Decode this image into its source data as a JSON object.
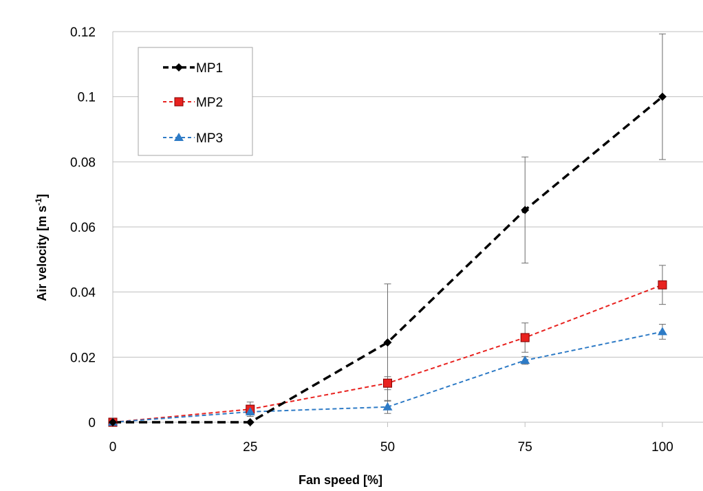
{
  "chart_data": {
    "type": "line",
    "title": "",
    "xlabel": "Fan speed [%]",
    "ylabel": "Air velocity [m s-1]",
    "ylabel_main": "Air velocity [m s",
    "ylabel_sup": "-1",
    "ylabel_tail": "]",
    "x": [
      0,
      25,
      50,
      75,
      100
    ],
    "xticks": [
      "0",
      "25",
      "50",
      "75",
      "100"
    ],
    "xlim": [
      0,
      100
    ],
    "ylim": [
      0,
      0.12
    ],
    "yticks": [
      "0",
      "0.02",
      "0.04",
      "0.06",
      "0.08",
      "0.1",
      "0.12"
    ],
    "grid": "horizontal",
    "legend_position": "top-left",
    "series": [
      {
        "name": "MP1",
        "color": "#000000",
        "marker": "diamond",
        "line": "dashed-bold",
        "values": [
          0,
          0,
          0.0245,
          0.0652,
          0.1
        ],
        "errors": [
          0,
          0,
          0.018,
          0.0163,
          0.0193
        ]
      },
      {
        "name": "MP2",
        "color": "#e8221f",
        "marker": "square",
        "line": "dashed",
        "values": [
          0,
          0.004,
          0.012,
          0.026,
          0.0422
        ],
        "errors": [
          0,
          0.0022,
          0.002,
          0.0045,
          0.006
        ]
      },
      {
        "name": "MP3",
        "color": "#2e7bc6",
        "marker": "triangle",
        "line": "dashed",
        "values": [
          0,
          0.0032,
          0.0047,
          0.019,
          0.0278
        ],
        "errors": [
          0,
          0.001,
          0.002,
          0.0012,
          0.0023
        ]
      }
    ]
  }
}
